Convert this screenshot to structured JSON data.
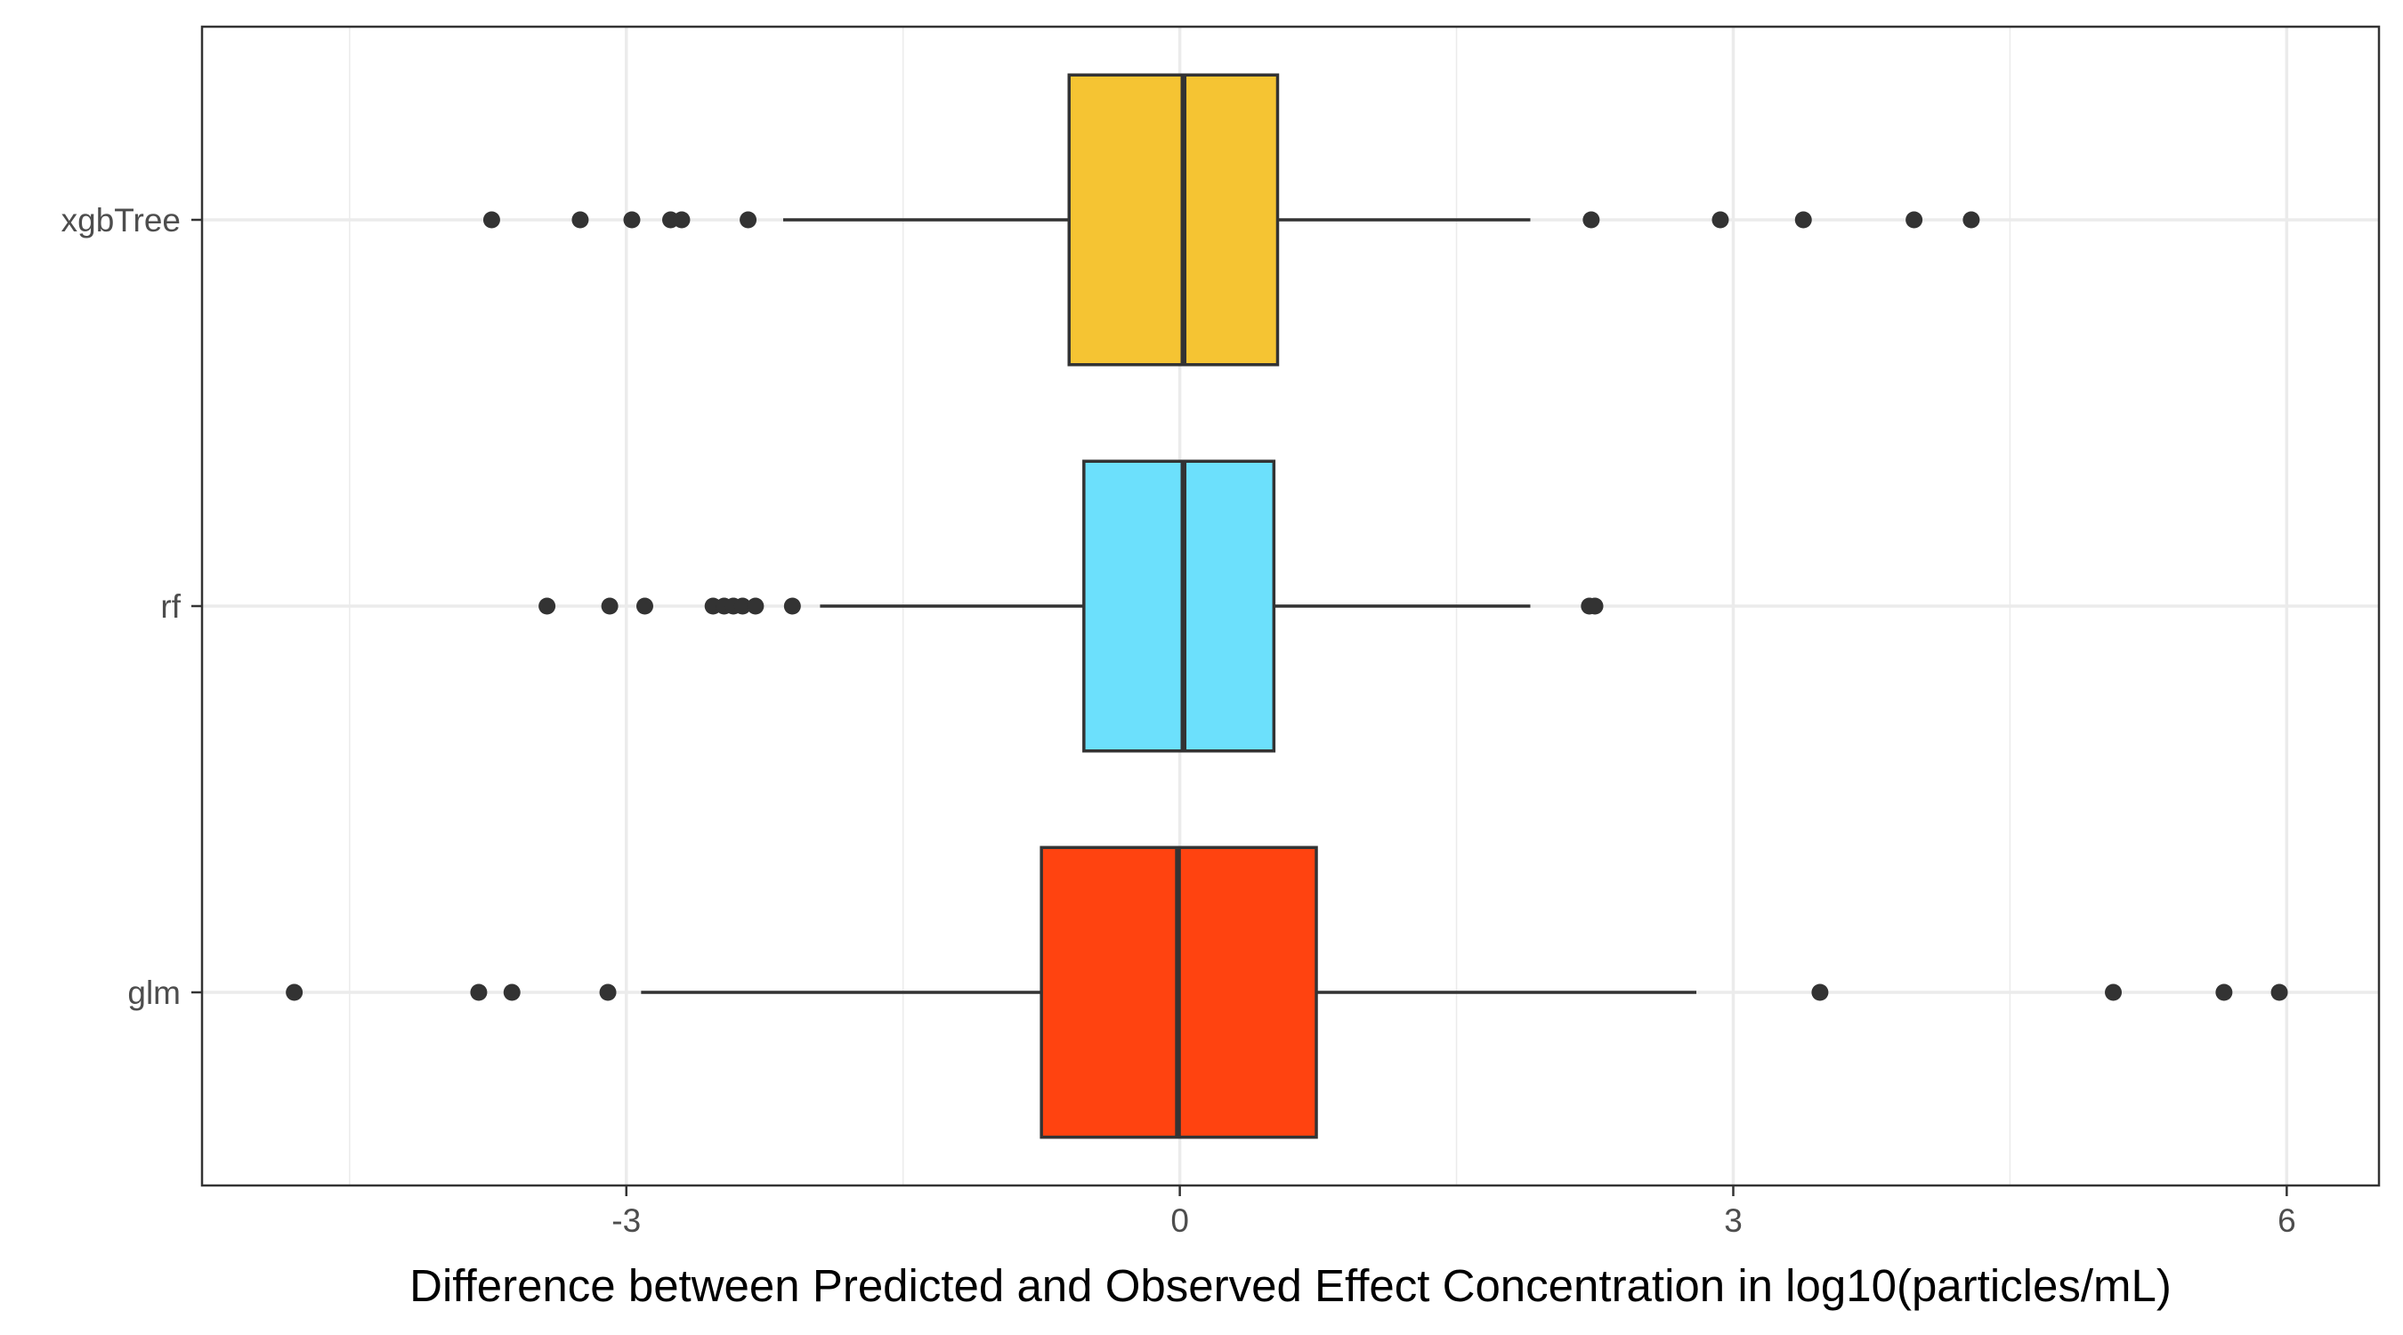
{
  "chart_data": {
    "type": "boxplot",
    "orientation": "horizontal",
    "title": "",
    "xlabel": "Difference between Predicted and Observed Effect Concentration in log10(particles/mL)",
    "ylabel": "",
    "xlim": [
      -5.3,
      6.5
    ],
    "xticks": [
      -3,
      0,
      3,
      6
    ],
    "xtick_labels": [
      "-3",
      "0",
      "3",
      "6"
    ],
    "categories": [
      "xgbTree",
      "rf",
      "glm"
    ],
    "grid": true,
    "legend": "none",
    "series": [
      {
        "category": "xgbTree",
        "color": "#F5C433",
        "q1": -0.6,
        "median": 0.02,
        "q3": 0.53,
        "whisker_low": -2.15,
        "whisker_high": 1.9,
        "outliers": [
          -3.73,
          -3.25,
          -2.97,
          -2.76,
          -2.7,
          -2.34,
          2.23,
          2.93,
          3.38,
          3.98,
          4.29
        ]
      },
      {
        "category": "rf",
        "color": "#6CE0FC",
        "q1": -0.52,
        "median": 0.02,
        "q3": 0.51,
        "whisker_low": -1.95,
        "whisker_high": 1.9,
        "outliers": [
          -3.43,
          -3.09,
          -2.9,
          -2.53,
          -2.47,
          -2.42,
          -2.37,
          -2.3,
          -2.1,
          2.22,
          2.25
        ]
      },
      {
        "category": "glm",
        "color": "#FF4310",
        "q1": -0.75,
        "median": -0.01,
        "q3": 0.74,
        "whisker_low": -2.92,
        "whisker_high": 2.8,
        "outliers": [
          -4.8,
          -3.8,
          -3.62,
          -3.1,
          3.47,
          5.06,
          5.66,
          5.96
        ]
      }
    ]
  }
}
